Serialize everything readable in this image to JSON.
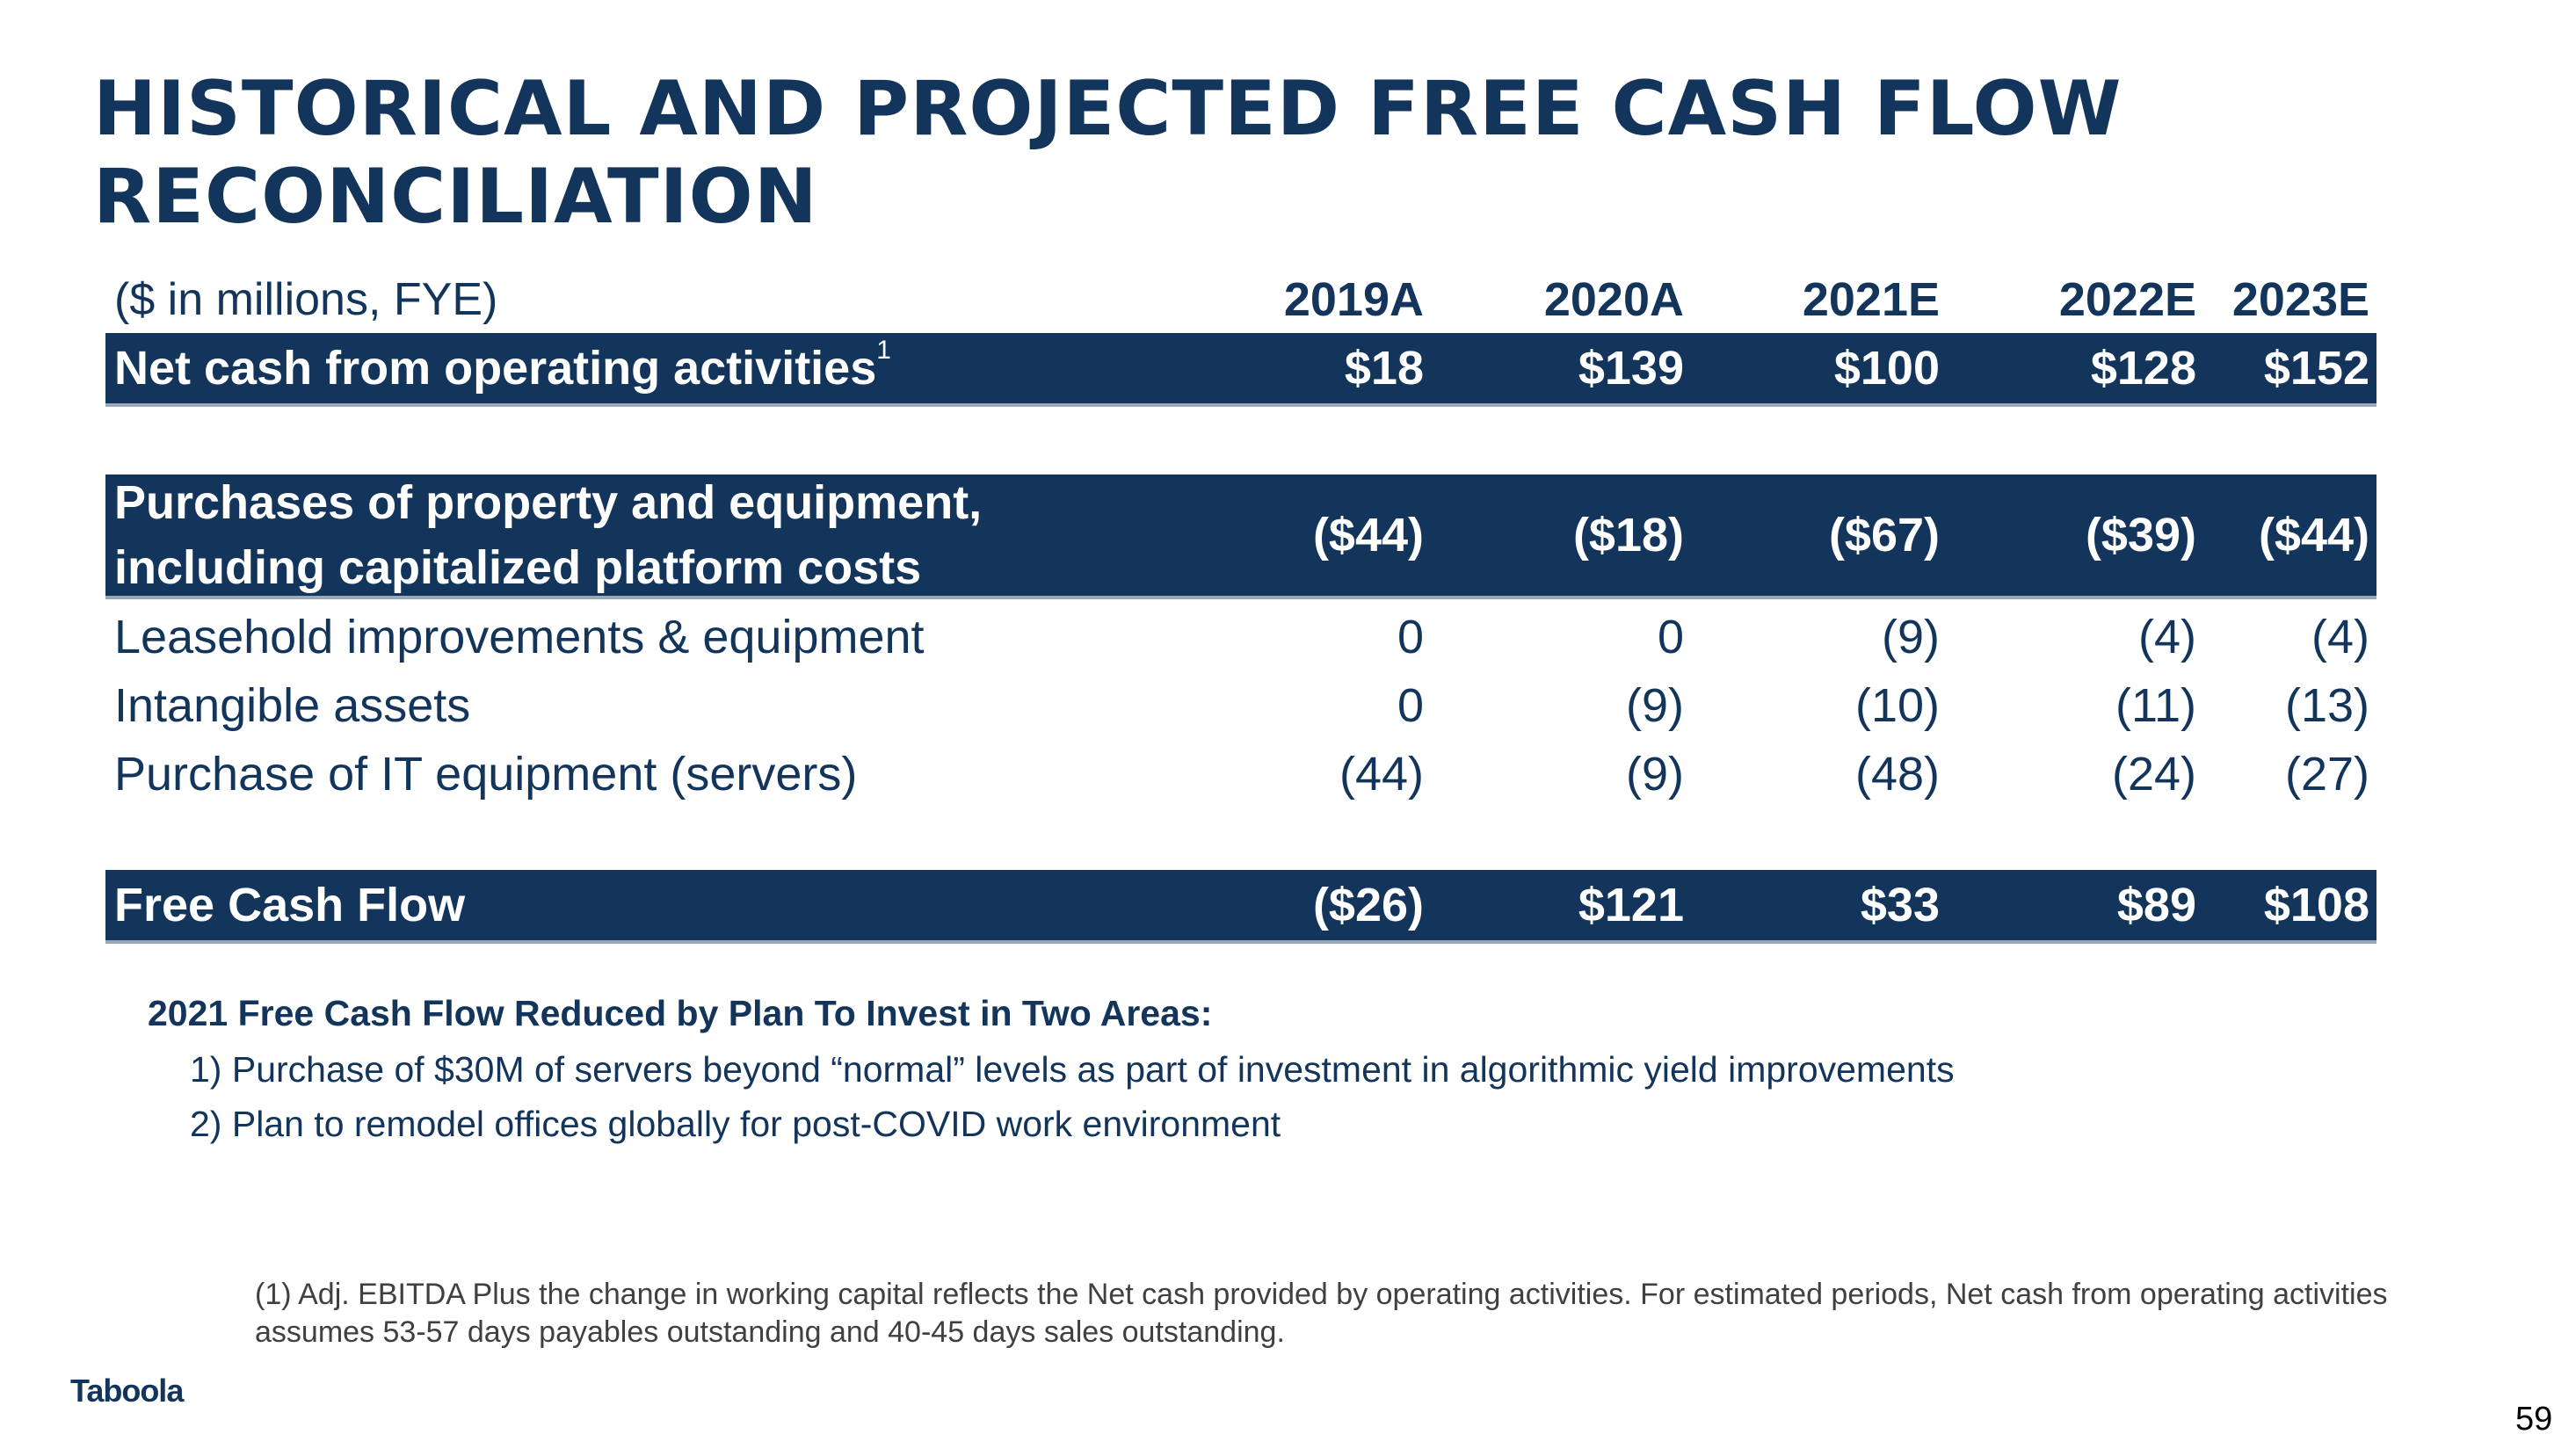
{
  "title": "HISTORICAL AND PROJECTED FREE CASH FLOW RECONCILIATION",
  "table": {
    "unit_label": "($ in millions, FYE)",
    "years": [
      "2019A",
      "2020A",
      "2021E",
      "2022E",
      "2023E"
    ],
    "rows": {
      "operating_cash": {
        "label": "Net cash from operating activities",
        "footnote_mark": "1",
        "values": [
          "$18",
          "$139",
          "$100",
          "$128",
          "$152"
        ]
      },
      "capex": {
        "label_line1": "Purchases of property and equipment,",
        "label_line2": "including capitalized platform costs",
        "values": [
          "($44)",
          "($18)",
          "($67)",
          "($39)",
          "($44)"
        ]
      },
      "leasehold": {
        "label": "Leasehold improvements & equipment",
        "values": [
          "0",
          "0",
          "(9)",
          "(4)",
          "(4)"
        ]
      },
      "intangible": {
        "label": "Intangible assets",
        "values": [
          "0",
          "(9)",
          "(10)",
          "(11)",
          "(13)"
        ]
      },
      "it_equipment": {
        "label": "Purchase of IT equipment (servers)",
        "values": [
          "(44)",
          "(9)",
          "(48)",
          "(24)",
          "(27)"
        ]
      },
      "free_cash_flow": {
        "label": "Free Cash Flow",
        "values": [
          "($26)",
          "$121",
          "$33",
          "$89",
          "$108"
        ]
      }
    }
  },
  "notes": {
    "heading": "2021 Free Cash Flow Reduced by Plan To Invest in Two Areas:",
    "items": [
      "1) Purchase of $30M of servers beyond “normal” levels as part of investment in algorithmic yield improvements",
      "2) Plan to remodel offices globally for post-COVID work environment"
    ]
  },
  "footnote": "(1) Adj. EBITDA Plus the change in working capital reflects the Net cash provided by operating activities. For estimated periods, Net cash from operating activities assumes 53-57 days payables outstanding and 40-45 days sales outstanding.",
  "logo": "Taboola",
  "page_number": "59",
  "colors": {
    "brand_navy": "#13355b",
    "text_gray": "#404040"
  }
}
